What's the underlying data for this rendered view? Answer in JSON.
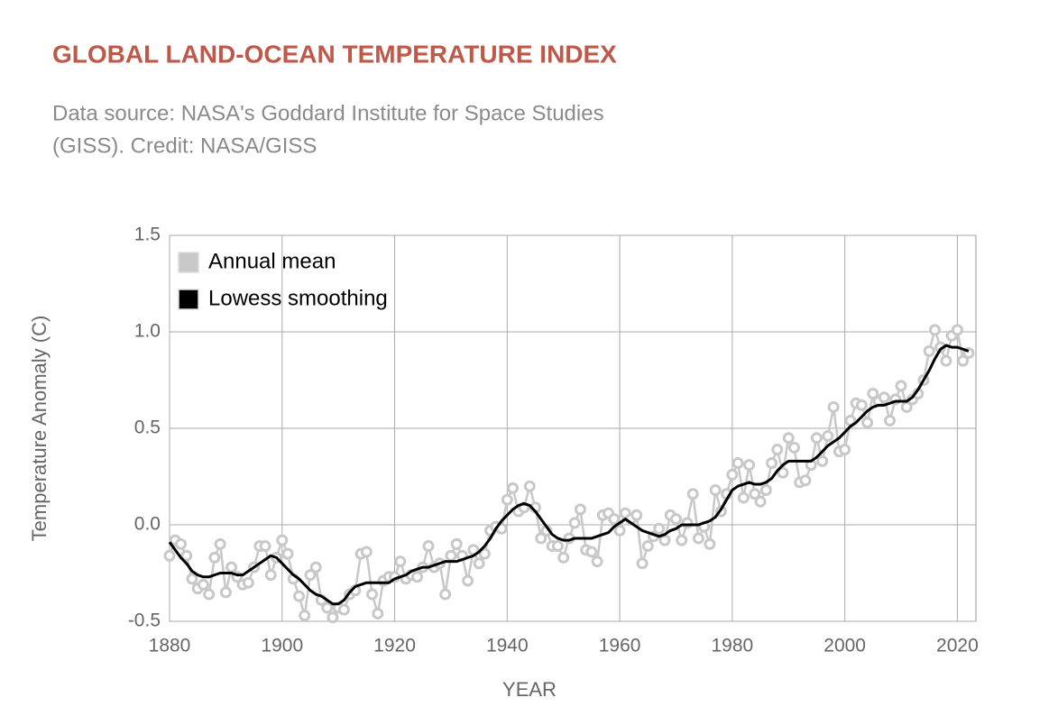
{
  "chart_data": {
    "type": "line",
    "title": "GLOBAL LAND-OCEAN TEMPERATURE INDEX",
    "subtitle": [
      "Data source: NASA's Goddard Institute for Space Studies",
      "(GISS). Credit: NASA/GISS"
    ],
    "xlabel": "YEAR",
    "ylabel": "Temperature Anomaly (C)",
    "x": [
      1880,
      1881,
      1882,
      1883,
      1884,
      1885,
      1886,
      1887,
      1888,
      1889,
      1890,
      1891,
      1892,
      1893,
      1894,
      1895,
      1896,
      1897,
      1898,
      1899,
      1900,
      1901,
      1902,
      1903,
      1904,
      1905,
      1906,
      1907,
      1908,
      1909,
      1910,
      1911,
      1912,
      1913,
      1914,
      1915,
      1916,
      1917,
      1918,
      1919,
      1920,
      1921,
      1922,
      1923,
      1924,
      1925,
      1926,
      1927,
      1928,
      1929,
      1930,
      1931,
      1932,
      1933,
      1934,
      1935,
      1936,
      1937,
      1938,
      1939,
      1940,
      1941,
      1942,
      1943,
      1944,
      1945,
      1946,
      1947,
      1948,
      1949,
      1950,
      1951,
      1952,
      1953,
      1954,
      1955,
      1956,
      1957,
      1958,
      1959,
      1960,
      1961,
      1962,
      1963,
      1964,
      1965,
      1966,
      1967,
      1968,
      1969,
      1970,
      1971,
      1972,
      1973,
      1974,
      1975,
      1976,
      1977,
      1978,
      1979,
      1980,
      1981,
      1982,
      1983,
      1984,
      1985,
      1986,
      1987,
      1988,
      1989,
      1990,
      1991,
      1992,
      1993,
      1994,
      1995,
      1996,
      1997,
      1998,
      1999,
      2000,
      2001,
      2002,
      2003,
      2004,
      2005,
      2006,
      2007,
      2008,
      2009,
      2010,
      2011,
      2012,
      2013,
      2014,
      2015,
      2016,
      2017,
      2018,
      2019,
      2020,
      2021,
      2022
    ],
    "series": [
      {
        "name": "Annual mean",
        "color": "#c8c8c8",
        "markers": true,
        "values": [
          -0.16,
          -0.08,
          -0.1,
          -0.16,
          -0.28,
          -0.33,
          -0.31,
          -0.36,
          -0.17,
          -0.1,
          -0.35,
          -0.22,
          -0.27,
          -0.31,
          -0.3,
          -0.22,
          -0.11,
          -0.11,
          -0.26,
          -0.17,
          -0.08,
          -0.15,
          -0.28,
          -0.37,
          -0.47,
          -0.26,
          -0.22,
          -0.39,
          -0.43,
          -0.48,
          -0.43,
          -0.44,
          -0.36,
          -0.34,
          -0.15,
          -0.14,
          -0.36,
          -0.46,
          -0.29,
          -0.27,
          -0.27,
          -0.19,
          -0.28,
          -0.26,
          -0.27,
          -0.22,
          -0.11,
          -0.22,
          -0.2,
          -0.36,
          -0.16,
          -0.1,
          -0.16,
          -0.29,
          -0.13,
          -0.2,
          -0.15,
          -0.03,
          -0.01,
          -0.02,
          0.13,
          0.19,
          0.07,
          0.09,
          0.2,
          0.09,
          -0.07,
          -0.03,
          -0.11,
          -0.11,
          -0.17,
          -0.07,
          0.01,
          0.08,
          -0.13,
          -0.14,
          -0.19,
          0.05,
          0.06,
          0.03,
          -0.03,
          0.06,
          0.03,
          0.05,
          -0.2,
          -0.11,
          -0.06,
          -0.02,
          -0.08,
          0.05,
          0.03,
          -0.08,
          0.01,
          0.16,
          -0.07,
          -0.01,
          -0.1,
          0.18,
          0.07,
          0.16,
          0.26,
          0.32,
          0.14,
          0.31,
          0.16,
          0.12,
          0.18,
          0.32,
          0.39,
          0.27,
          0.45,
          0.4,
          0.22,
          0.23,
          0.31,
          0.45,
          0.33,
          0.46,
          0.61,
          0.38,
          0.39,
          0.54,
          0.63,
          0.62,
          0.53,
          0.68,
          0.64,
          0.66,
          0.54,
          0.65,
          0.72,
          0.61,
          0.65,
          0.68,
          0.75,
          0.9,
          1.01,
          0.92,
          0.85,
          0.98,
          1.01,
          0.85,
          0.89
        ]
      },
      {
        "name": "Lowess smoothing",
        "color": "#000000",
        "markers": false,
        "values": [
          -0.09,
          -0.13,
          -0.17,
          -0.2,
          -0.24,
          -0.26,
          -0.27,
          -0.27,
          -0.26,
          -0.25,
          -0.25,
          -0.25,
          -0.26,
          -0.26,
          -0.24,
          -0.22,
          -0.2,
          -0.18,
          -0.16,
          -0.17,
          -0.2,
          -0.23,
          -0.26,
          -0.28,
          -0.31,
          -0.34,
          -0.36,
          -0.37,
          -0.39,
          -0.41,
          -0.41,
          -0.39,
          -0.35,
          -0.32,
          -0.31,
          -0.3,
          -0.3,
          -0.3,
          -0.3,
          -0.3,
          -0.28,
          -0.27,
          -0.26,
          -0.24,
          -0.23,
          -0.22,
          -0.22,
          -0.21,
          -0.2,
          -0.19,
          -0.19,
          -0.19,
          -0.18,
          -0.17,
          -0.16,
          -0.14,
          -0.11,
          -0.07,
          -0.02,
          0.02,
          0.05,
          0.08,
          0.1,
          0.11,
          0.1,
          0.07,
          0.03,
          -0.01,
          -0.05,
          -0.07,
          -0.08,
          -0.08,
          -0.07,
          -0.07,
          -0.07,
          -0.07,
          -0.06,
          -0.05,
          -0.04,
          -0.01,
          0.01,
          0.03,
          0.01,
          -0.01,
          -0.03,
          -0.04,
          -0.05,
          -0.06,
          -0.05,
          -0.03,
          -0.02,
          0.0,
          0.0,
          0.0,
          0.0,
          0.01,
          0.02,
          0.04,
          0.08,
          0.13,
          0.18,
          0.2,
          0.21,
          0.22,
          0.21,
          0.21,
          0.22,
          0.24,
          0.28,
          0.31,
          0.33,
          0.33,
          0.33,
          0.33,
          0.33,
          0.35,
          0.38,
          0.41,
          0.43,
          0.45,
          0.48,
          0.51,
          0.53,
          0.56,
          0.59,
          0.61,
          0.62,
          0.62,
          0.63,
          0.64,
          0.64,
          0.64,
          0.66,
          0.7,
          0.75,
          0.8,
          0.86,
          0.91,
          0.93,
          0.92,
          0.92,
          0.91,
          0.9
        ]
      }
    ],
    "xlim": [
      1880,
      2023.3
    ],
    "xticks": [
      1880,
      1900,
      1920,
      1940,
      1960,
      1980,
      2000,
      2020
    ],
    "ylim": [
      -0.5,
      1.5
    ],
    "yticks": [
      {
        "value": -0.5,
        "label": "-0.5"
      },
      {
        "value": 0,
        "label": "0.0"
      },
      {
        "value": 0.5,
        "label": "0.5"
      },
      {
        "value": 1,
        "label": "1.0"
      },
      {
        "value": 1.5,
        "label": "1.5"
      }
    ],
    "grid": true,
    "legend": "upper-left"
  }
}
